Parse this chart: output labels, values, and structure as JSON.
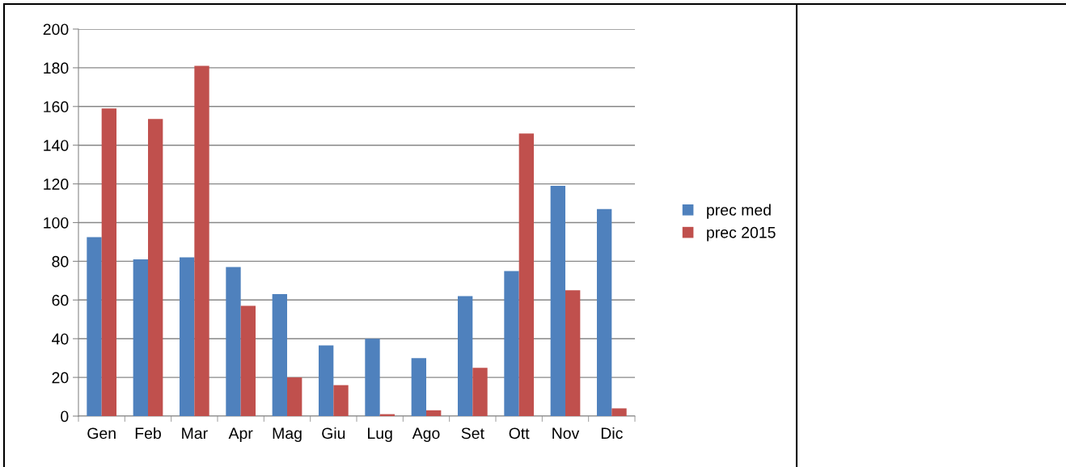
{
  "chart_data": {
    "type": "bar",
    "categories": [
      "Gen",
      "Feb",
      "Mar",
      "Apr",
      "Mag",
      "Giu",
      "Lug",
      "Ago",
      "Set",
      "Ott",
      "Nov",
      "Dic"
    ],
    "series": [
      {
        "name": "prec med",
        "color": "#4f81bd",
        "values": [
          92.5,
          81,
          82,
          77,
          63,
          36.5,
          40,
          30,
          62,
          75,
          119,
          107
        ]
      },
      {
        "name": "prec 2015",
        "color": "#c0504d",
        "values": [
          159,
          153.5,
          181,
          57,
          20,
          16,
          1,
          3,
          25,
          146,
          65,
          4
        ]
      }
    ],
    "ylim": [
      0,
      200
    ],
    "yticks": [
      0,
      20,
      40,
      60,
      80,
      100,
      120,
      140,
      160,
      180,
      200
    ],
    "grid": "y",
    "legend": "right"
  }
}
